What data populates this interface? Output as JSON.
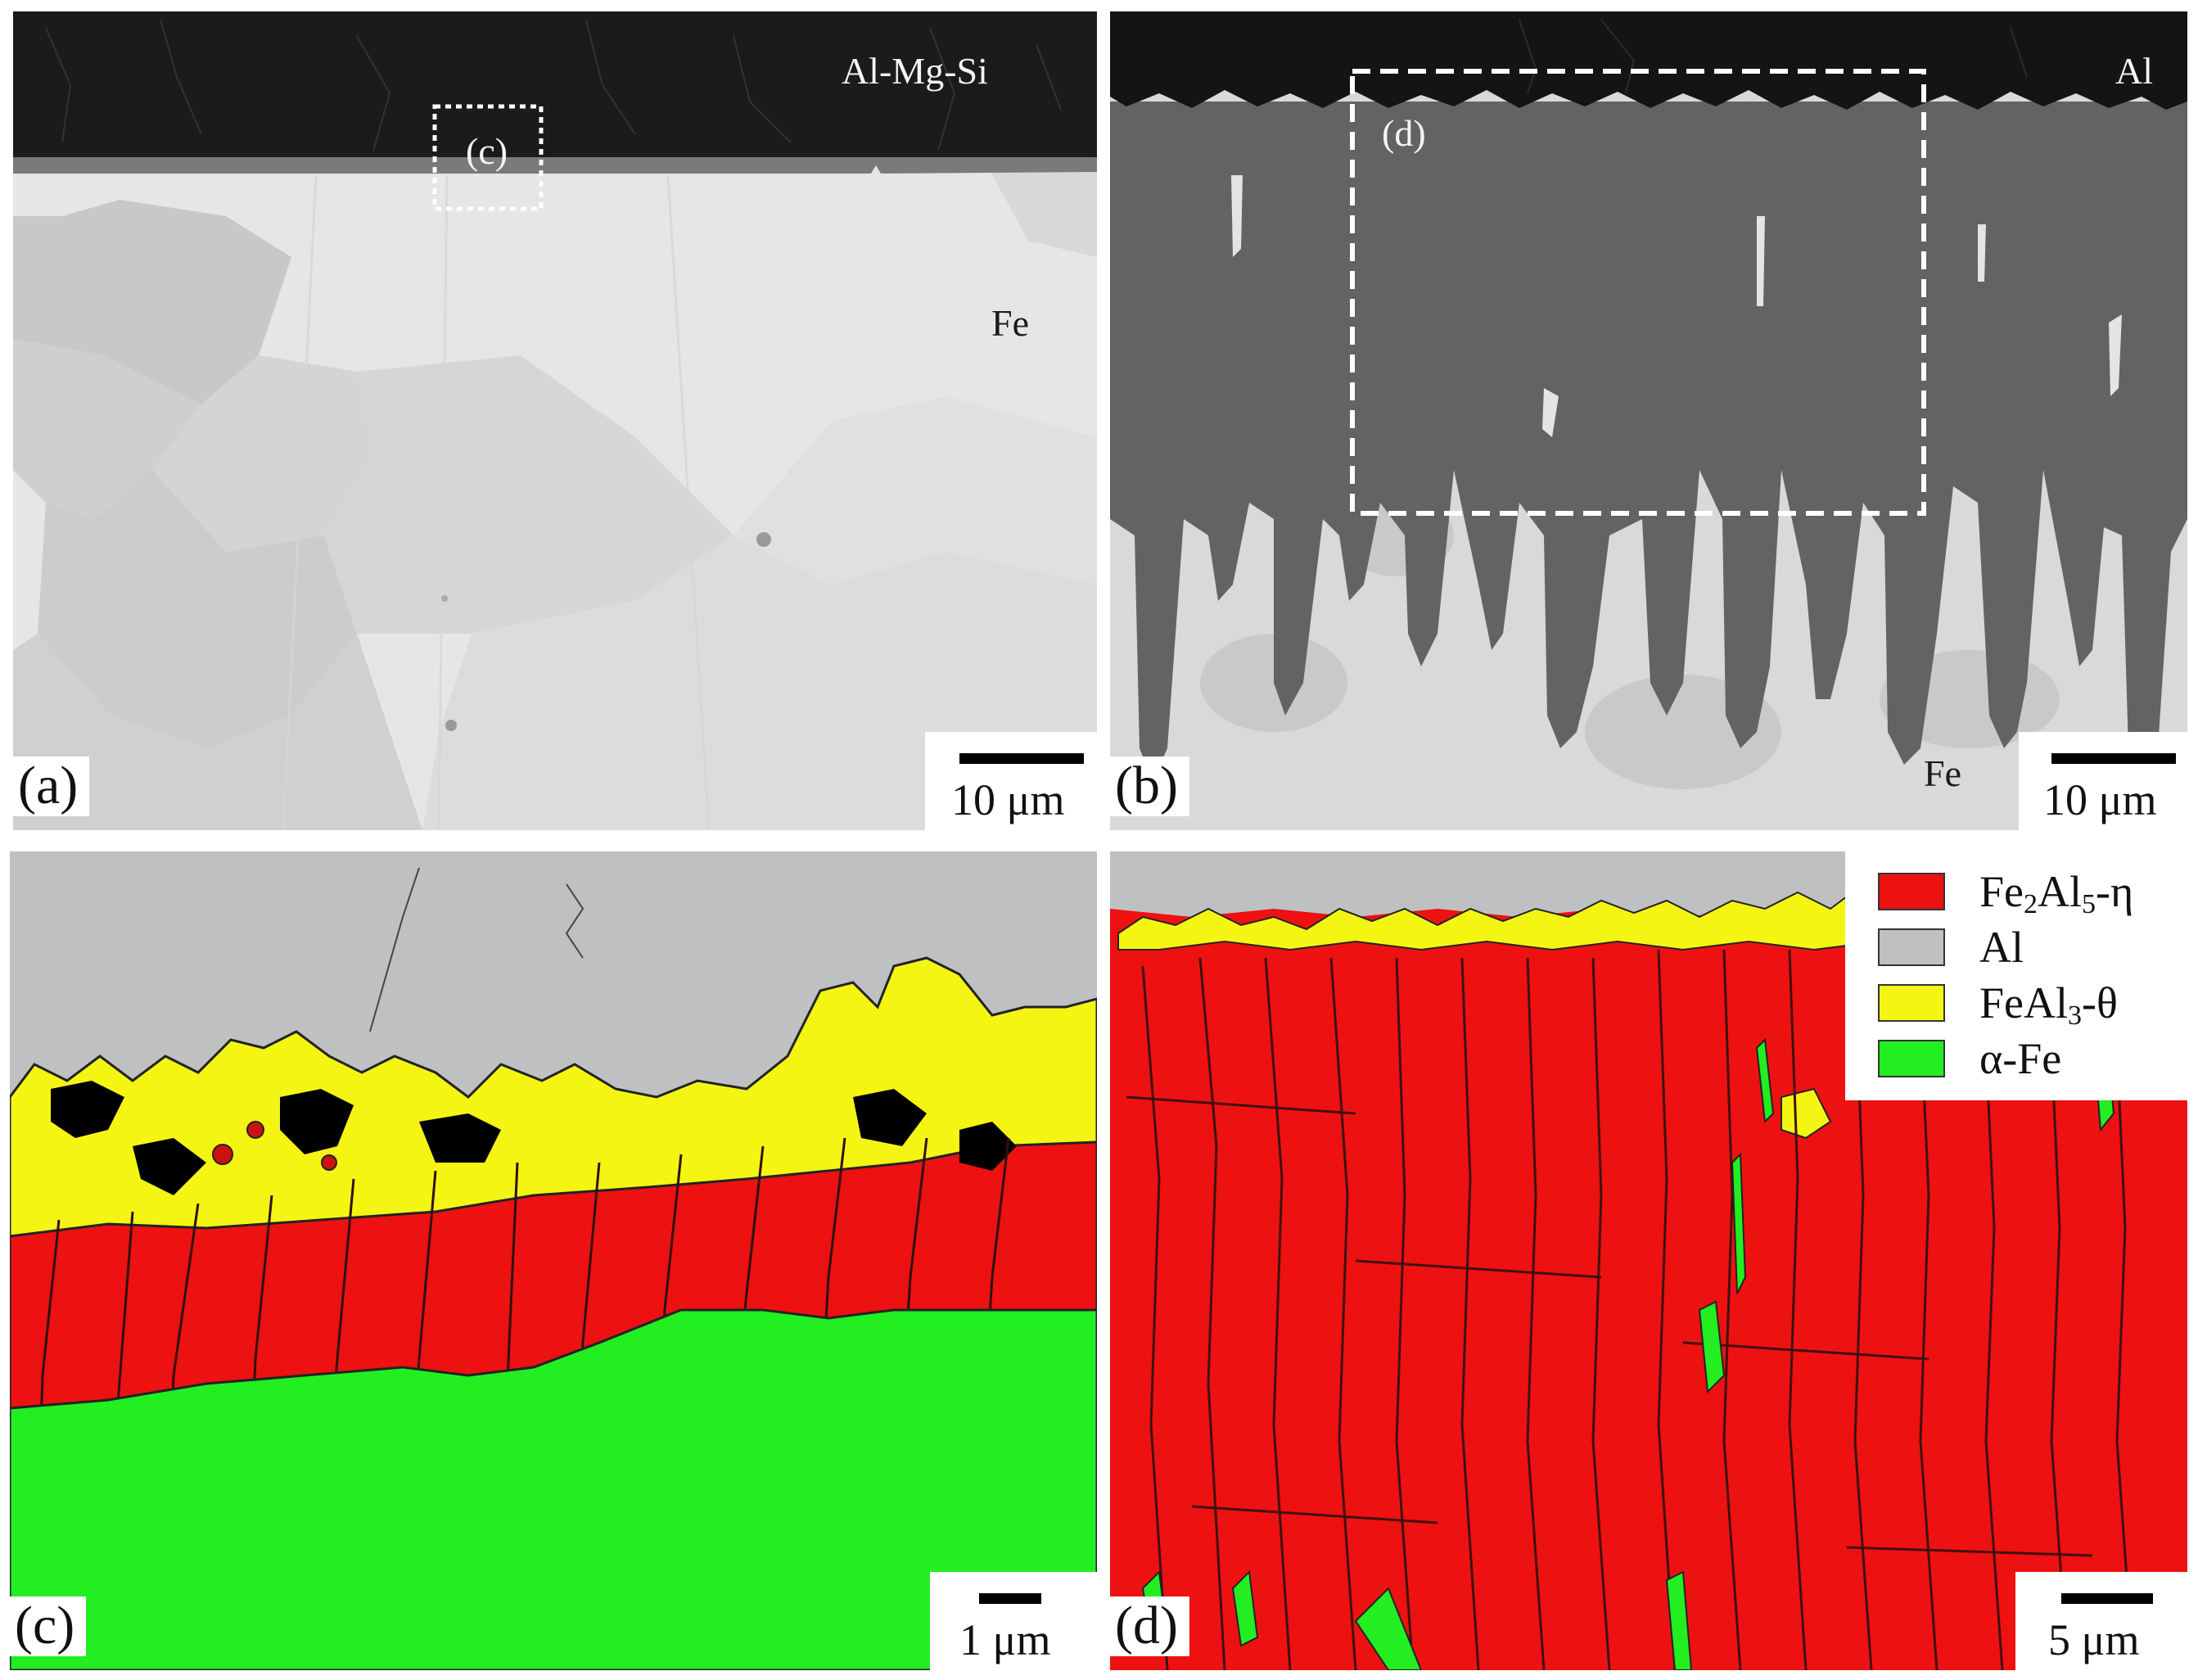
{
  "panels": {
    "a": {
      "label": "(a)",
      "top_region": "Al-Mg-Si",
      "bottom_region": "Fe",
      "inset_label": "(c)",
      "scale": "10 μm"
    },
    "b": {
      "label": "(b)",
      "top_region": "Al",
      "bottom_region": "Fe",
      "inset_label": "(d)",
      "scale": "10 μm"
    },
    "c": {
      "label": "(c)",
      "scale": "1 μm"
    },
    "d": {
      "label": "(d)",
      "scale": "5 μm"
    }
  },
  "legend": [
    {
      "base": "Fe",
      "s1": "2",
      "mid": "Al",
      "s2": "5",
      "suffix": "-η",
      "color": "#ee1111"
    },
    {
      "base": "Al",
      "s1": "",
      "mid": "",
      "s2": "",
      "suffix": "",
      "color": "#bfc0c2"
    },
    {
      "base": "FeAl",
      "s1": "3",
      "mid": "",
      "s2": "",
      "suffix": "-θ",
      "color": "#f5f514"
    },
    {
      "base": "α-Fe",
      "s1": "",
      "mid": "",
      "s2": "",
      "suffix": "",
      "color": "#22ee22"
    }
  ],
  "colors": {
    "eta": "#ee1111",
    "al": "#bfc0c2",
    "theta": "#f5f514",
    "alpha_fe": "#22ee22",
    "sem_dark": "#1b1b1b",
    "sem_fe": "#e2e2e2",
    "sem_intermetallic": "#636363"
  }
}
